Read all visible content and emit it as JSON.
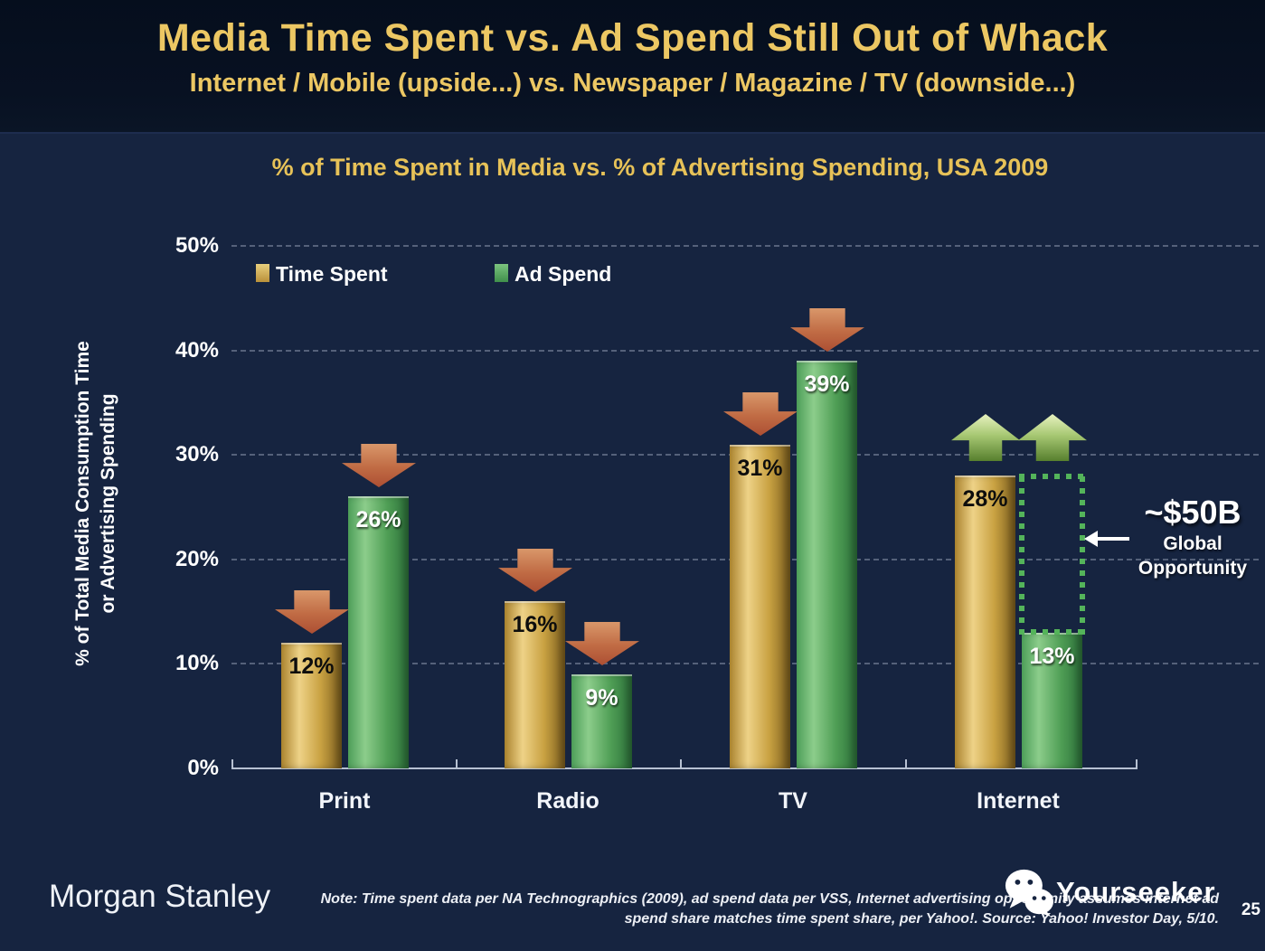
{
  "header": {
    "title": "Media Time Spent vs. Ad Spend Still Out of Whack",
    "subtitle": "Internet / Mobile (upside...) vs. Newspaper / Magazine / TV (downside...)"
  },
  "chart_data": {
    "type": "bar",
    "title": "% of Time Spent in Media vs. % of Advertising Spending, USA 2009",
    "categories": [
      "Print",
      "Radio",
      "TV",
      "Internet"
    ],
    "series": [
      {
        "name": "Time Spent",
        "values": [
          12,
          16,
          31,
          28
        ],
        "bar_style": "gold",
        "value_label_style": "dark"
      },
      {
        "name": "Ad Spend",
        "values": [
          26,
          9,
          39,
          13
        ],
        "bar_style": "green",
        "value_label_style": "light"
      }
    ],
    "value_suffix": "%",
    "ylabel_line1": "% of Total Media Consumption Time",
    "ylabel_line2": "or Advertising Spending",
    "ylim": [
      0,
      50
    ],
    "yticks": [
      "0%",
      "10%",
      "20%",
      "30%",
      "40%",
      "50%"
    ],
    "grid": "horizontal dashed",
    "legend_position": "top-left inside plot",
    "arrows": [
      [
        "down",
        "down"
      ],
      [
        "down",
        "down"
      ],
      [
        "down",
        "down"
      ],
      [
        "up",
        "up"
      ]
    ],
    "opportunity_box": {
      "category": "Internet",
      "from_value": 13,
      "to_value": 28
    },
    "colors": {
      "slide_background": "#162440",
      "header_background": "#081122",
      "title_gold": "#ecc763",
      "bar_gold": "#c9a242",
      "bar_green": "#4f9e55",
      "arrow_down_red": "#ad4f33",
      "arrow_up_green": "#a7c873",
      "dotted_box_green": "#54b45a",
      "gridline": "#bcc6da",
      "text_white": "#ffffff"
    }
  },
  "annotation": {
    "value": "~$50B",
    "line1": "Global",
    "line2": "Opportunity"
  },
  "footer": {
    "brand": "Morgan Stanley",
    "note_line1": "Note: Time spent data per NA Technographics (2009), ad spend data per VSS, Internet advertising opportunity assumes internet ad",
    "note_line2": "spend share matches time spent share, per Yahoo!. Source: Yahoo! Investor Day, 5/10.",
    "watermark": "Yourseeker",
    "page": "25"
  }
}
